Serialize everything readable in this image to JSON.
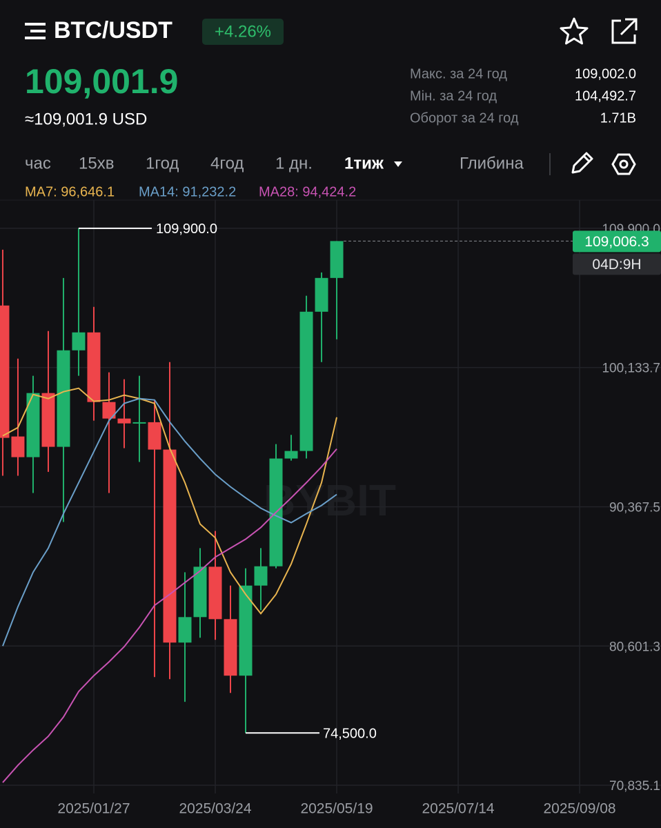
{
  "header": {
    "pair": "BTC/USDT",
    "change": "+4.26%",
    "price": "109,001.9",
    "price_usd": "≈109,001.9 USD",
    "stats": [
      {
        "label": "Макс. за 24 год",
        "value": "109,002.0"
      },
      {
        "label": "Мін. за 24 год",
        "value": "104,492.7"
      },
      {
        "label": "Оборот за 24 год",
        "value": "1.71B"
      }
    ]
  },
  "intervals": [
    "час",
    "15хв",
    "1год",
    "4год",
    "1 дн.",
    "1тиж"
  ],
  "depth": "Глибина",
  "chart_data": {
    "type": "candlestick",
    "open": [
      104485,
      95298,
      93848,
      98345,
      94573,
      101342,
      102600,
      97716,
      96556,
      96217,
      96300,
      94380,
      80842,
      82630,
      86161,
      82486,
      78521,
      84840,
      86193,
      93752,
      94283,
      104050,
      106419
    ],
    "high": [
      108402,
      100762,
      99553,
      102696,
      106419,
      109900,
      104389,
      99795,
      99311,
      99553,
      97861,
      100520,
      85774,
      87466,
      88674,
      84840,
      86049,
      87466,
      94767,
      95412,
      105171,
      106806,
      109006.3
    ],
    "low": [
      92543,
      92543,
      91334,
      92817,
      89303,
      99553,
      96411,
      91334,
      94477,
      93510,
      78425,
      78280,
      76684,
      81180,
      81035,
      77312,
      74500,
      83114,
      86049,
      93606,
      93752,
      100520,
      102116
    ],
    "close": [
      95202,
      93848,
      98345,
      94573,
      101342,
      102600,
      97716,
      96556,
      96217,
      96300,
      94380,
      80842,
      82630,
      86161,
      82486,
      78521,
      84840,
      86193,
      93752,
      94283,
      104050,
      106419,
      109006.3
    ],
    "up_color": "#20b26c",
    "down_color": "#ef454a",
    "series": [
      {
        "name": "MA7: 96,646.1",
        "color": "#e8b44f",
        "values": [
          95347,
          95927,
          98248,
          97958,
          98441,
          98683,
          97764,
          97861,
          98200,
          97958,
          97619,
          94477,
          92059,
          89158,
          88191,
          85774,
          84227,
          82873,
          84227,
          86354,
          89158,
          92059,
          96646.1
        ]
      },
      {
        "name": "MA14: 91,232.2",
        "color": "#6a9fc9",
        "values": [
          80600,
          83356,
          85774,
          87466,
          89884,
          92059,
          94235,
          96411,
          97619,
          97958,
          97861,
          96314,
          94960,
          93752,
          92640,
          91769,
          90996,
          90270,
          89738,
          89255,
          89884,
          90464,
          91232.2
        ]
      },
      {
        "name": "MA28: 94,424.2",
        "color": "#c853b3",
        "values": [
          71027,
          72236,
          73300,
          74267,
          75620,
          77409,
          78521,
          79488,
          80552,
          81905,
          83452,
          84227,
          85049,
          85871,
          86838,
          87466,
          88095,
          88916,
          89980,
          90996,
          92059,
          93171,
          94424.2
        ]
      }
    ],
    "xlim": [
      -0.18,
      43.36
    ],
    "xticks": [
      {
        "value": 6,
        "label": "2025/01/27"
      },
      {
        "value": 14,
        "label": "2025/03/24"
      },
      {
        "value": 22,
        "label": "2025/05/19"
      },
      {
        "value": 30,
        "label": "2025/07/14"
      },
      {
        "value": 38,
        "label": "2025/09/08"
      }
    ],
    "ylim": [
      70255,
      111880
    ],
    "yticks": [
      {
        "value": 109900,
        "label": "109,900.0"
      },
      {
        "value": 100133.7,
        "label": "100,133.7"
      },
      {
        "value": 90367.5,
        "label": "90,367.5"
      },
      {
        "value": 80601.3,
        "label": "80,601.3"
      },
      {
        "value": 70835.1,
        "label": "70,835.1"
      }
    ],
    "grid": true,
    "annotations": {
      "high": {
        "value": 109900,
        "label": "109,900.0"
      },
      "low": {
        "value": 74500,
        "label": "74,500.0"
      },
      "last_price": {
        "value": 109006.3,
        "label": "109,006.3"
      },
      "countdown": "04D:9H"
    },
    "watermark": "BYBIT"
  }
}
